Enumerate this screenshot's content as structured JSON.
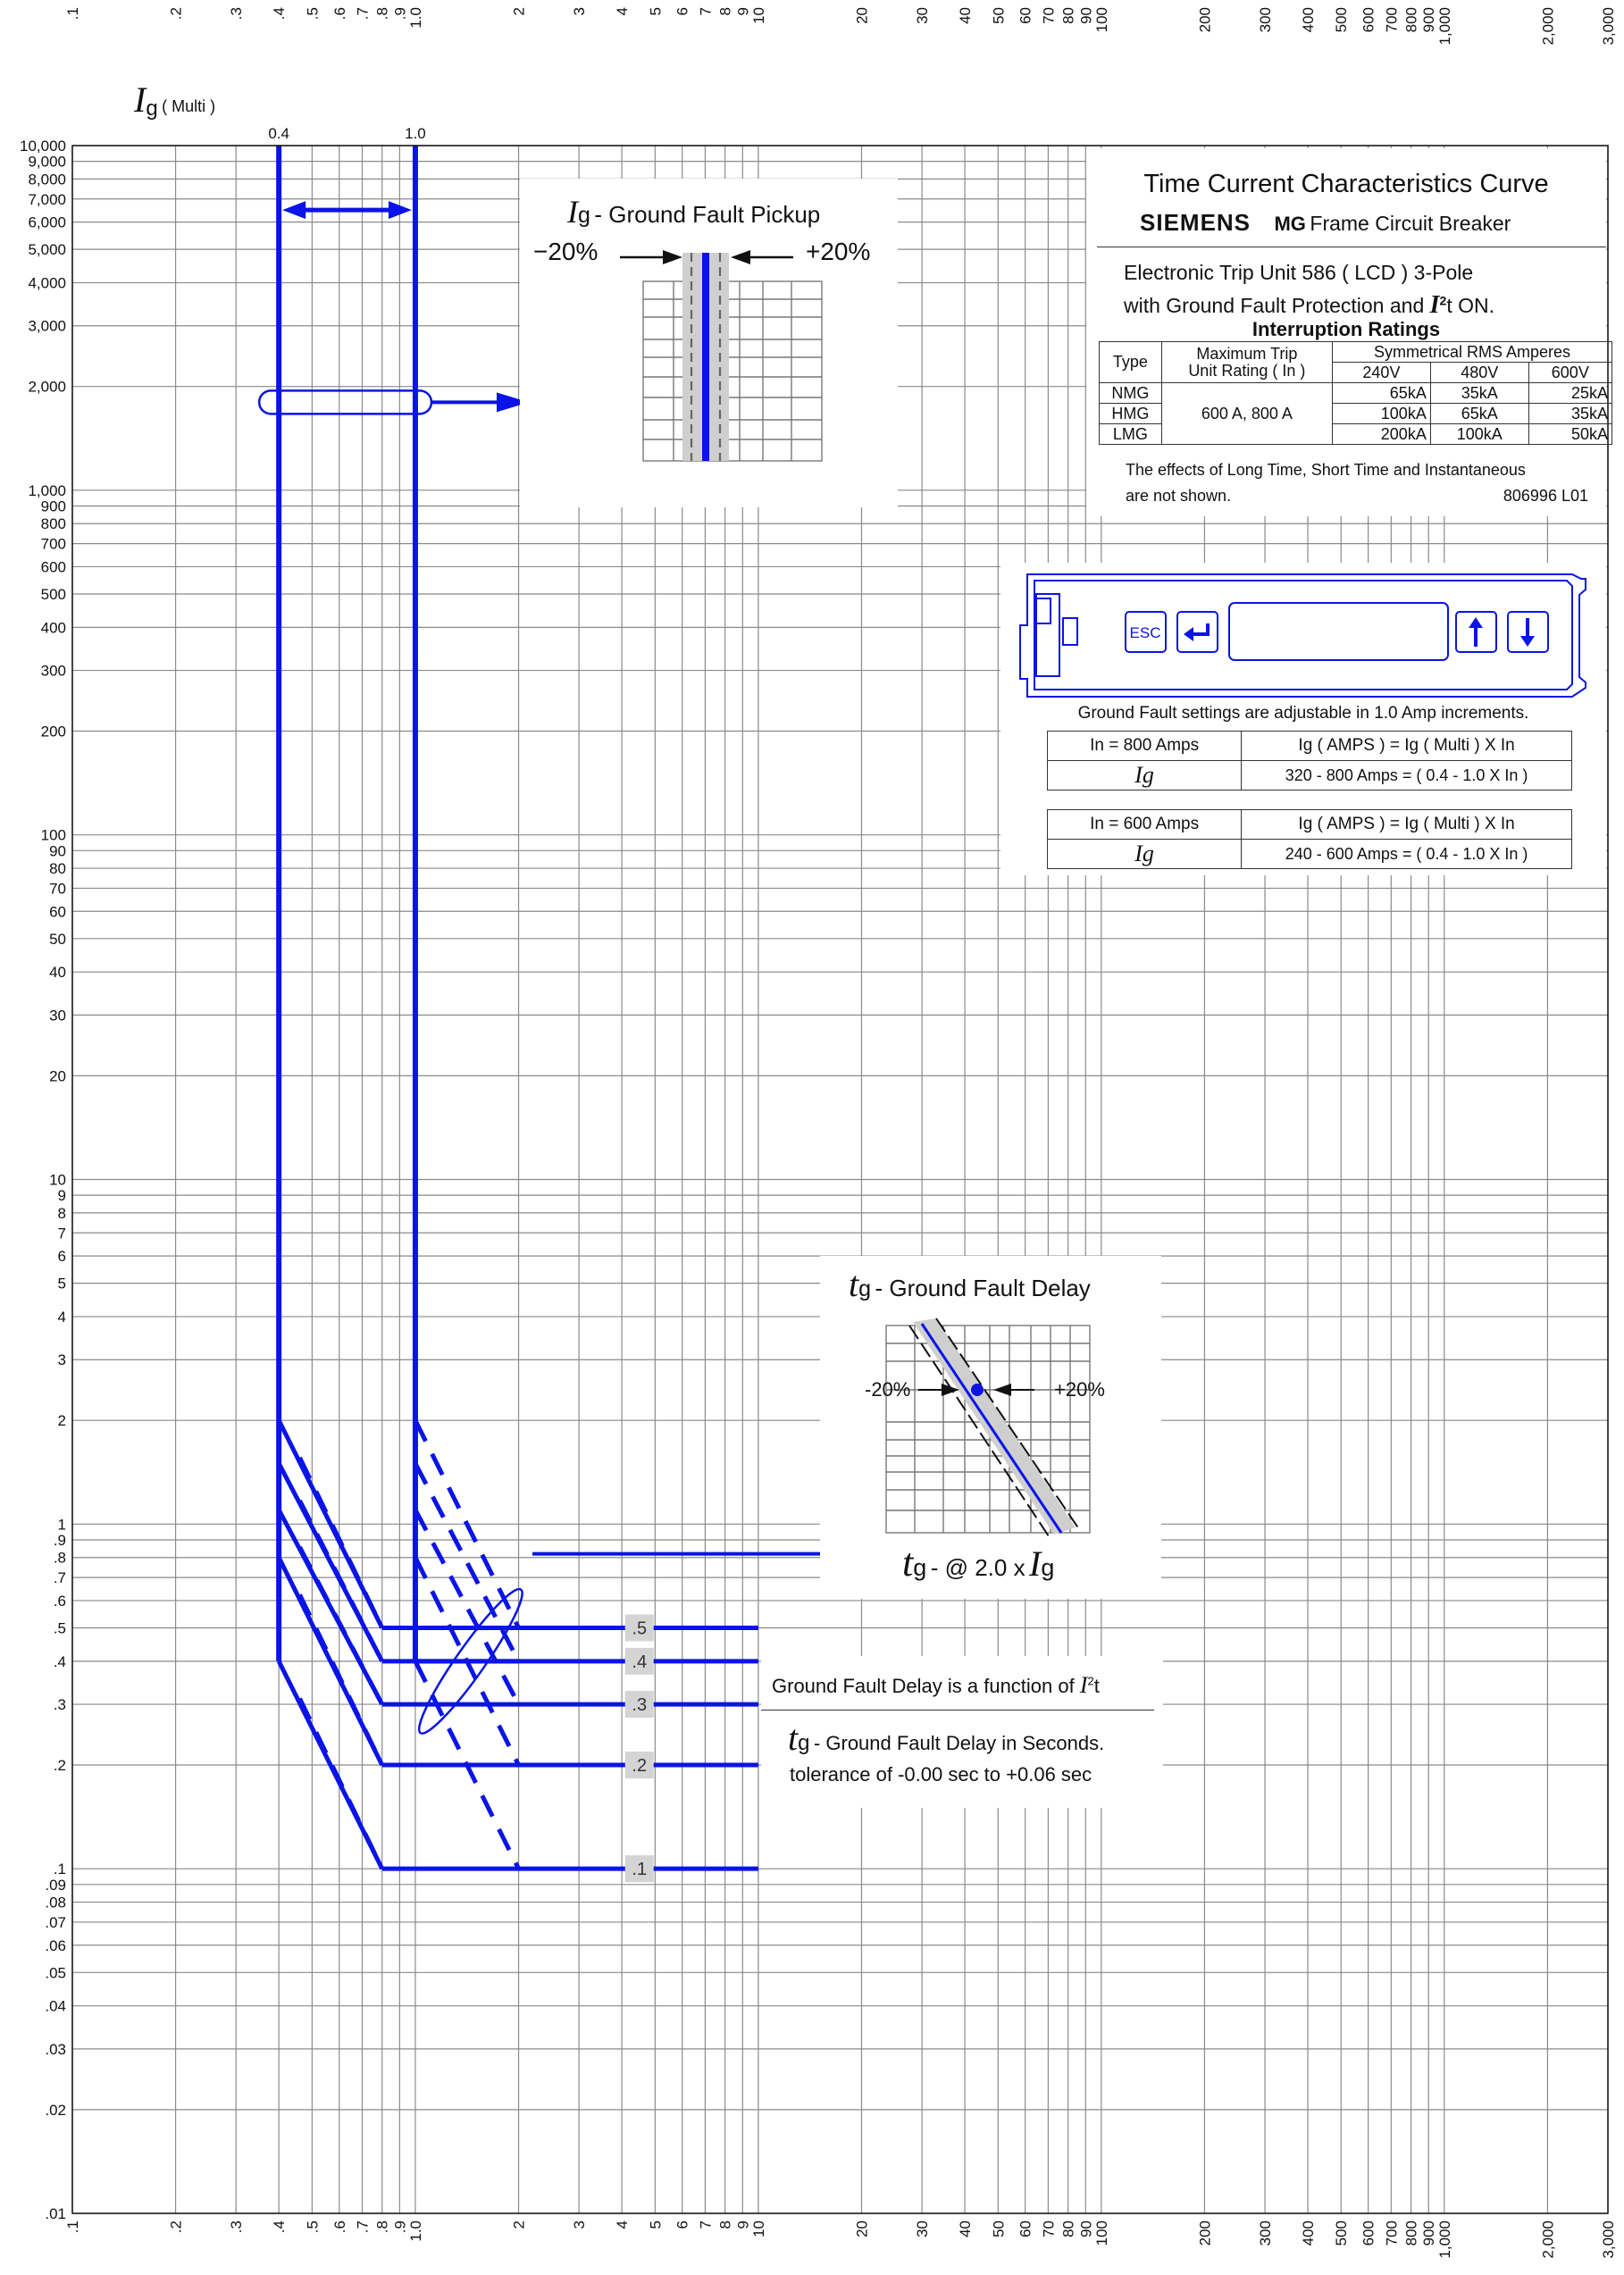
{
  "chart_data": {
    "type": "line",
    "title": "Time Current Characteristics Curve",
    "x_axis": {
      "scale": "log",
      "range": [
        0.1,
        3000
      ],
      "unit_label": "Ig ( Multi )",
      "tick_values": [
        0.1,
        0.2,
        0.3,
        0.4,
        0.5,
        0.6,
        0.7,
        0.8,
        0.9,
        1,
        2,
        3,
        4,
        5,
        6,
        7,
        8,
        9,
        10,
        20,
        30,
        40,
        50,
        60,
        70,
        80,
        90,
        100,
        200,
        300,
        400,
        500,
        600,
        700,
        800,
        900,
        1000,
        2000,
        3000
      ],
      "tick_labels": [
        ".1",
        ".2",
        ".3",
        ".4",
        ".5",
        ".6",
        ".7",
        ".8",
        ".9",
        "1.0",
        "2",
        "3",
        "4",
        "5",
        "6",
        "7",
        "8",
        "9",
        "10",
        "20",
        "30",
        "40",
        "50",
        "60",
        "70",
        "80",
        "90",
        "100",
        "200",
        "300",
        "400",
        "500",
        "600",
        "700",
        "800",
        "900",
        "1,000",
        "2,000",
        "3,000"
      ]
    },
    "y_axis": {
      "scale": "log",
      "range": [
        0.01,
        10000
      ],
      "tick_values": [
        0.01,
        0.02,
        0.03,
        0.04,
        0.05,
        0.06,
        0.07,
        0.08,
        0.09,
        0.1,
        0.2,
        0.3,
        0.4,
        0.5,
        0.6,
        0.7,
        0.8,
        0.9,
        1,
        2,
        3,
        4,
        5,
        6,
        7,
        8,
        9,
        10,
        20,
        30,
        40,
        50,
        60,
        70,
        80,
        90,
        100,
        200,
        300,
        400,
        500,
        600,
        700,
        800,
        900,
        1000,
        2000,
        3000,
        4000,
        5000,
        6000,
        7000,
        8000,
        9000,
        10000
      ],
      "tick_labels": [
        ".01",
        ".02",
        ".03",
        ".04",
        ".05",
        ".06",
        ".07",
        ".08",
        ".09",
        ".1",
        ".2",
        ".3",
        ".4",
        ".5",
        ".6",
        ".7",
        ".8",
        ".9",
        "1",
        "2",
        "3",
        "4",
        "5",
        "6",
        "7",
        "8",
        "9",
        "10",
        "20",
        "30",
        "40",
        "50",
        "60",
        "70",
        "80",
        "90",
        "100",
        "200",
        "300",
        "400",
        "500",
        "600",
        "700",
        "800",
        "900",
        "1,000",
        "2,000",
        "3,000",
        "4,000",
        "5,000",
        "6,000",
        "7,000",
        "8,000",
        "9,000",
        "10,000"
      ]
    },
    "grid": true,
    "pickup_lines": [
      {
        "label": "0.4",
        "x": 0.4,
        "y_range": [
          0.4,
          10000
        ]
      },
      {
        "label": "1.0",
        "x": 1.0,
        "y_range": [
          0.4,
          10000
        ]
      }
    ],
    "delay_bands": [
      {
        "label": ".5",
        "t": 0.5
      },
      {
        "label": ".4",
        "t": 0.4
      },
      {
        "label": ".3",
        "t": 0.3
      },
      {
        "label": ".2",
        "t": 0.2
      },
      {
        "label": ".1",
        "t": 0.1
      }
    ],
    "delay_band_x_range": [
      0.4,
      10
    ],
    "delay_corner_multiple": 2.0,
    "i2t_start_t": [
      2,
      1.5,
      1.1,
      0.8,
      0.4
    ],
    "series_color": "#0a14e6"
  },
  "labels": {
    "x_unit_ig": "I",
    "x_unit_sub": "g",
    "x_unit_multi": "( Multi )"
  },
  "pickup_inset": {
    "title_i": "I",
    "title_sub": "g",
    "title_rest": "- Ground Fault Pickup",
    "minus": "−20%",
    "plus": "+20%"
  },
  "title_panel": {
    "title": "Time Current Characteristics Curve",
    "brand": "SIEMENS",
    "frame_bold": "MG",
    "frame_rest": "Frame Circuit Breaker",
    "line1": "Electronic Trip Unit  586 ( LCD )  3-Pole",
    "line2a": "with  Ground Fault Protection and",
    "line2_i": "I",
    "line2_sup": "2",
    "line2b": "t ON.",
    "ratings_title": "Interruption Ratings",
    "col_type": "Type",
    "col_trip": "Maximum Trip",
    "col_trip2": "Unit Rating",
    "col_trip_in": "( In )",
    "col_sym": "Symmetrical RMS Amperes",
    "volts": [
      "240V",
      "480V",
      "600V"
    ],
    "rating_value": "600 A,  800 A",
    "rows": [
      {
        "type": "NMG",
        "v240": "65kA",
        "v480": "35kA",
        "v600": "25kA"
      },
      {
        "type": "HMG",
        "v240": "100kA",
        "v480": "65kA",
        "v600": "35kA"
      },
      {
        "type": "LMG",
        "v240": "200kA",
        "v480": "100kA",
        "v600": "50kA"
      }
    ],
    "note1": "The effects of Long Time, Short Time and Instantaneous",
    "note2": "are not shown.",
    "doc_id": "806996 L01"
  },
  "lcd_panel": {
    "esc": "ESC",
    "note": "Ground Fault settings are adjustable in 1.0 Amp increments.",
    "table1_in": "In = 800 Amps",
    "table1_formula": "Ig ( AMPS )  =  Ig ( Multi )   X   In",
    "table1_ig": "Ig",
    "table1_range": "320 - 800 Amps = ( 0.4 - 1.0 X In )",
    "table2_in": "In = 600 Amps",
    "table2_formula": "Ig ( AMPS )  =  Ig ( Multi )   X   In",
    "table2_ig": "Ig",
    "table2_range": "240 - 600 Amps = ( 0.4 - 1.0 X In )"
  },
  "delay_inset": {
    "title_t": "t",
    "title_sub": "g",
    "title_rest": "- Ground Fault Delay",
    "minus": "-20%",
    "plus": "+20%",
    "bottom_t": "t",
    "bottom_sub": "g",
    "bottom_rest": "-  @ 2.0 x",
    "bottom_i": "I",
    "bottom_isub": "g"
  },
  "function_note": {
    "line1": "Ground Fault Delay is a function of",
    "line1_i": "I",
    "line1_sup": "2",
    "line1_t": "t",
    "line2_t": "t",
    "line2_sub": "g",
    "line2_rest": "- Ground Fault Delay in Seconds.",
    "line3": "tolerance of  -0.00 sec to +0.06 sec"
  }
}
